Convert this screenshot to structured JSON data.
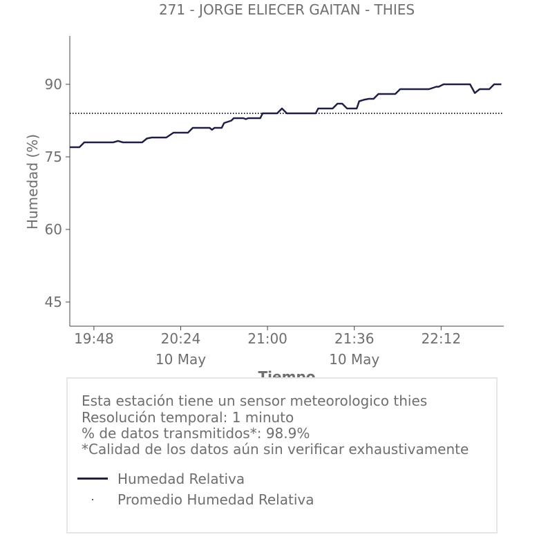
{
  "chart_data": {
    "type": "line",
    "title": "271 - JORGE ELIECER GAITAN - THIES",
    "xlabel": "Tiempo",
    "ylabel": "Humedad (%)",
    "ylim": [
      40,
      100
    ],
    "y_ticks": [
      45,
      60,
      75,
      90
    ],
    "x_ticks": [
      {
        "t": "19:48",
        "label": "19:48",
        "sub": ""
      },
      {
        "t": "20:24",
        "label": "20:24",
        "sub": "10 May"
      },
      {
        "t": "21:00",
        "label": "21:00",
        "sub": ""
      },
      {
        "t": "21:36",
        "label": "21:36",
        "sub": "10 May"
      },
      {
        "t": "22:12",
        "label": "22:12",
        "sub": ""
      }
    ],
    "xlim": [
      "19:38",
      "22:38"
    ],
    "legend_position": "inside info box, bottom-left",
    "series": [
      {
        "name": "Humedad Relativa",
        "style": "solid",
        "color": "#1f1f44",
        "points": [
          [
            "19:38",
            77
          ],
          [
            "19:42",
            77
          ],
          [
            "19:44",
            78
          ],
          [
            "19:56",
            78
          ],
          [
            "19:58",
            78.3
          ],
          [
            "20:00",
            78
          ],
          [
            "20:08",
            78
          ],
          [
            "20:10",
            78.8
          ],
          [
            "20:12",
            79
          ],
          [
            "20:18",
            79
          ],
          [
            "20:21",
            80
          ],
          [
            "20:27",
            80
          ],
          [
            "20:29",
            81
          ],
          [
            "20:36",
            81
          ],
          [
            "20:37",
            80.6
          ],
          [
            "20:38",
            81
          ],
          [
            "20:41",
            81
          ],
          [
            "20:42",
            82
          ],
          [
            "20:45",
            82.5
          ],
          [
            "20:46",
            83
          ],
          [
            "20:50",
            83
          ],
          [
            "20:51",
            82.8
          ],
          [
            "20:52",
            83
          ],
          [
            "20:57",
            83
          ],
          [
            "20:58",
            84
          ],
          [
            "21:04",
            84
          ],
          [
            "21:06",
            85
          ],
          [
            "21:08",
            84
          ],
          [
            "21:20",
            84
          ],
          [
            "21:21",
            85
          ],
          [
            "21:27",
            85
          ],
          [
            "21:29",
            86
          ],
          [
            "21:31",
            86
          ],
          [
            "21:33",
            85
          ],
          [
            "21:37",
            85
          ],
          [
            "21:38",
            86.5
          ],
          [
            "21:40",
            86.8
          ],
          [
            "21:42",
            87
          ],
          [
            "21:44",
            87
          ],
          [
            "21:46",
            88
          ],
          [
            "21:53",
            88
          ],
          [
            "21:55",
            89
          ],
          [
            "22:07",
            89
          ],
          [
            "22:10",
            89.5
          ],
          [
            "22:11",
            89.5
          ],
          [
            "22:13",
            90
          ],
          [
            "22:24",
            90
          ],
          [
            "22:26",
            88.2
          ],
          [
            "22:28",
            89
          ],
          [
            "22:32",
            89
          ],
          [
            "22:34",
            90
          ],
          [
            "22:37",
            90
          ]
        ]
      },
      {
        "name": "Promedio Humedad Relativa",
        "style": "dotted",
        "color": "#1f1f44",
        "value": 84
      }
    ]
  },
  "info": {
    "line1": "Esta estación tiene un sensor meteorologico thies",
    "line2": "Resolución temporal: 1 minuto",
    "line3": "% de datos transmitidos*: 98.9%",
    "line4": "*Calidad de los datos aún sin verificar exhaustivamente"
  },
  "legend": {
    "item1": "Humedad Relativa",
    "item2": "Promedio Humedad Relativa"
  }
}
